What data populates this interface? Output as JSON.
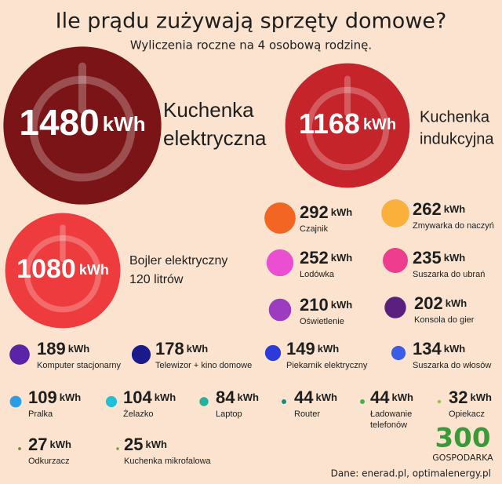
{
  "chart_data": {
    "type": "bubble",
    "title": "Ile prądu zużywają sprzęty domowe?",
    "subtitle": "Wyliczenia roczne na 4 osobową rodzinę.",
    "unit": "kWh",
    "items": [
      {
        "name": [
          "Kuchenka",
          "elektryczna"
        ],
        "value": 1480,
        "color": "#7a1416"
      },
      {
        "name": [
          "Kuchenka",
          "indukcyjna"
        ],
        "value": 1168,
        "color": "#c4242a"
      },
      {
        "name": [
          "Bojler elektryczny",
          "120 litrów"
        ],
        "value": 1080,
        "color": "#ee3b3d"
      },
      {
        "name": [
          "Czajnik"
        ],
        "value": 292,
        "color": "#f26522"
      },
      {
        "name": [
          "Zmywarka do naczyń"
        ],
        "value": 262,
        "color": "#fbb03b"
      },
      {
        "name": [
          "Lodówka"
        ],
        "value": 252,
        "color": "#e94fd0"
      },
      {
        "name": [
          "Suszarka do ubrań"
        ],
        "value": 235,
        "color": "#ee3d8f"
      },
      {
        "name": [
          "Oświetlenie"
        ],
        "value": 210,
        "color": "#9c3cc0"
      },
      {
        "name": [
          "Konsola do gier"
        ],
        "value": 202,
        "color": "#5b1f7f"
      },
      {
        "name": [
          "Komputer stacjonarny"
        ],
        "value": 189,
        "color": "#5a23a8"
      },
      {
        "name": [
          "Telewizor + kino domowe"
        ],
        "value": 178,
        "color": "#1a1a8c"
      },
      {
        "name": [
          "Piekarnik elektryczny"
        ],
        "value": 149,
        "color": "#2b3ad8"
      },
      {
        "name": [
          "Suszarka do włosów"
        ],
        "value": 134,
        "color": "#3b5ce6"
      },
      {
        "name": [
          "Pralka"
        ],
        "value": 109,
        "color": "#2b9ce6"
      },
      {
        "name": [
          "Żelazko"
        ],
        "value": 104,
        "color": "#22c0d8"
      },
      {
        "name": [
          "Laptop"
        ],
        "value": 84,
        "color": "#22b0a0"
      },
      {
        "name": [
          "Router"
        ],
        "value": 44,
        "color": "#1a8a7a"
      },
      {
        "name": [
          "Ładowanie",
          "telefonów"
        ],
        "value": 44,
        "color": "#3ab54a"
      },
      {
        "name": [
          "Opiekacz"
        ],
        "value": 32,
        "color": "#8cc63f"
      },
      {
        "name": [
          "Odkurzacz"
        ],
        "value": 27,
        "color": "#6a8a2a"
      },
      {
        "name": [
          "Kuchenka mikrofalowa"
        ],
        "value": 25,
        "color": "#7a9a2a"
      }
    ],
    "logo": [
      "300",
      "GOSPODARKA"
    ],
    "source": "Dane: enerad.pl, optimalenergy.pl"
  }
}
